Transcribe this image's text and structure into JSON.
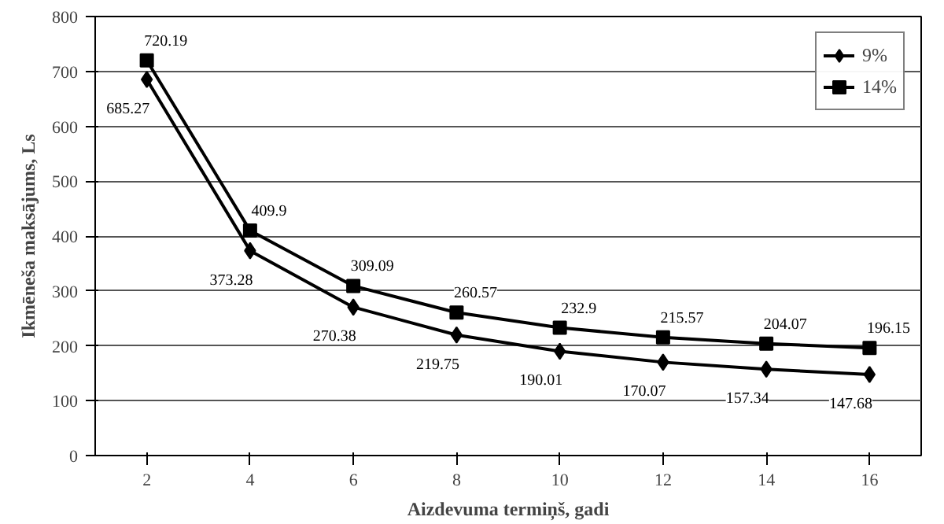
{
  "chart_data": {
    "type": "line",
    "xlabel": "Aizdevuma termiņš, gadi",
    "ylabel": "Ikmēneša maksājums, Ls",
    "categories": [
      "2",
      "4",
      "6",
      "8",
      "10",
      "12",
      "14",
      "16"
    ],
    "ylim": [
      0,
      800
    ],
    "yticks": [
      0,
      100,
      200,
      300,
      400,
      500,
      600,
      700,
      800
    ],
    "grid": "y",
    "legend": "top right",
    "data_labels": true,
    "line_style": "solid",
    "series": [
      {
        "name": "9%",
        "color": "#000000",
        "marker": "diamond",
        "values": [
          685.27,
          373.28,
          270.38,
          219.75,
          190.01,
          170.07,
          157.34,
          147.68
        ]
      },
      {
        "name": "14%",
        "color": "#000000",
        "marker": "square",
        "values": [
          720.19,
          409.9,
          309.09,
          260.57,
          232.9,
          215.57,
          204.07,
          196.15
        ]
      }
    ]
  }
}
